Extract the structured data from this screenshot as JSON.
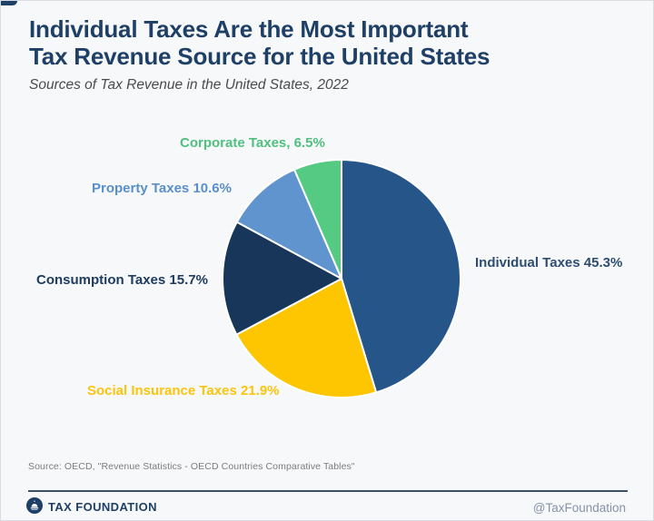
{
  "header": {
    "title_lines": [
      "Individual Taxes Are the Most Important",
      "Tax Revenue Source for the United States"
    ],
    "subtitle": "Sources of Tax Revenue in the United States, 2022",
    "title_color": "#1e3f66"
  },
  "chart_data": {
    "type": "pie",
    "title": "Sources of Tax Revenue in the United States, 2022",
    "start_angle_deg": 0,
    "direction": "clockwise",
    "slice_border_color": "#ffffff",
    "segments": [
      {
        "name": "Individual Taxes",
        "value_pct": 45.3,
        "color": "#265689",
        "label": "Individual Taxes 45.3%",
        "label_color": "#2e4d70"
      },
      {
        "name": "Social Insurance Taxes",
        "value_pct": 21.9,
        "color": "#fec601",
        "label": "Social Insurance Taxes 21.9%",
        "label_color": "#fbc40d"
      },
      {
        "name": "Consumption Taxes",
        "value_pct": 15.7,
        "color": "#17365a",
        "label": "Consumption Taxes 15.7%",
        "label_color": "#1d3c60"
      },
      {
        "name": "Property Taxes",
        "value_pct": 10.6,
        "color": "#6094cf",
        "label": "Property Taxes 10.6%",
        "label_color": "#5a8fc9"
      },
      {
        "name": "Corporate Taxes",
        "value_pct": 6.5,
        "color": "#55ca82",
        "label": "Corporate Taxes, 6.5%",
        "label_color": "#4fc07d"
      }
    ]
  },
  "source": {
    "text": "Source: OECD, \"Revenue Statistics - OECD Countries Comparative Tables\""
  },
  "footer": {
    "brand": "TAX FOUNDATION",
    "handle": "@TaxFoundation",
    "brand_color": "#1e3f66",
    "handle_color": "#8593a6",
    "logo_color": "#1e3f66"
  }
}
